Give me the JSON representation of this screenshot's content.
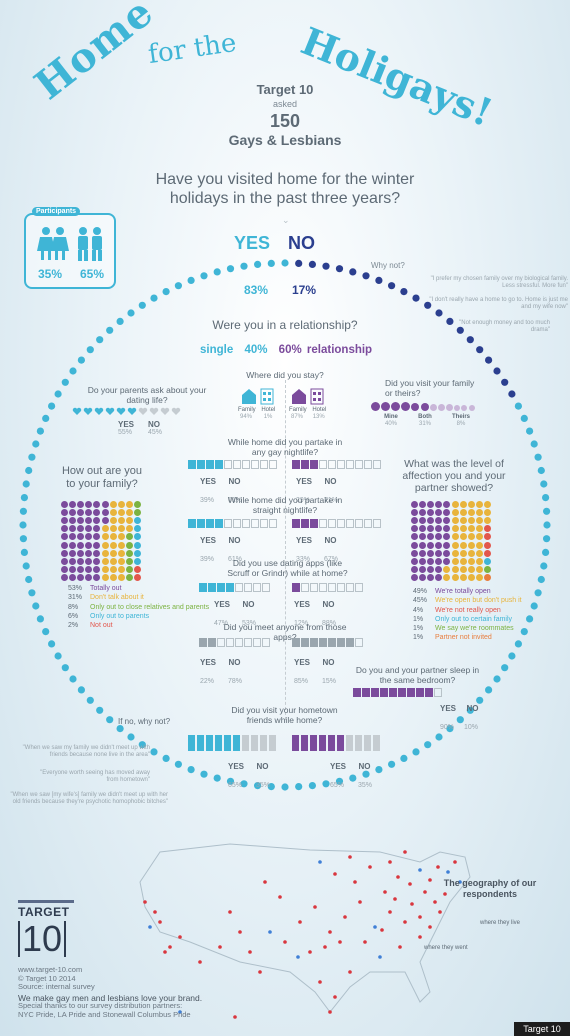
{
  "title": {
    "home": "Home",
    "for_the": "for the",
    "holigays": "Holigays!"
  },
  "intro": {
    "brand": "Target 10",
    "asked": "asked",
    "count": "150",
    "group": "Gays & Lesbians"
  },
  "main_question": "Have you visited home for the winter holidays in the past three years?",
  "participants": {
    "label": "Participants",
    "female_pct": "35%",
    "male_pct": "65%"
  },
  "visited": {
    "yes": "YES",
    "no": "NO",
    "yes_pct": "83%",
    "no_pct": "17%"
  },
  "why_not": {
    "label": "Why not?",
    "answers": [
      "\"I prefer my chosen family over my biological family. Less stressful. More fun\"",
      "\"I don't really have a home to go to. Home is just me and my wife now\"",
      "\"Not enough money and too much drama\""
    ]
  },
  "relationship": {
    "question": "Were you in a relationship?",
    "single_label": "single",
    "single_pct": "40%",
    "rel_pct": "60%",
    "rel_label": "relationship"
  },
  "parents_ask": {
    "question": "Do your parents ask about your dating life?",
    "yes": "YES",
    "yes_pct": "55%",
    "no": "NO",
    "no_pct": "45%"
  },
  "where_stay": {
    "question": "Where did you stay?",
    "single": [
      {
        "label": "Family",
        "pct": "94%"
      },
      {
        "label": "Hotel",
        "pct": "1%"
      }
    ],
    "rel": [
      {
        "label": "Family",
        "pct": "87%"
      },
      {
        "label": "Hotel",
        "pct": "13%"
      }
    ]
  },
  "visit_family": {
    "question": "Did you visit your family or theirs?",
    "options": [
      {
        "label": "Mine",
        "pct": "40%"
      },
      {
        "label": "Both",
        "pct": "31%"
      },
      {
        "label": "Theirs",
        "pct": "8%"
      }
    ]
  },
  "gay_nightlife": {
    "question": "While home did you partake in any gay nightlife?",
    "single": {
      "yes_pct": "39%",
      "no_pct": "61%"
    },
    "rel": {
      "yes_pct": "29%",
      "no_pct": "71%"
    }
  },
  "how_out": {
    "question": "How out are you to your family?",
    "legend": [
      {
        "pct": "53%",
        "label": "Totally out",
        "color": "#7b4b9c"
      },
      {
        "pct": "31%",
        "label": "Don't talk about it",
        "color": "#e8b43c"
      },
      {
        "pct": "8%",
        "label": "Only out to close relatives and parents",
        "color": "#7cb342"
      },
      {
        "pct": "6%",
        "label": "Only out to parents",
        "color": "#3fb5d6"
      },
      {
        "pct": "2%",
        "label": "Not out",
        "color": "#e2574c"
      }
    ]
  },
  "affection": {
    "question": "What was the level of affection you and your partner showed?",
    "legend": [
      {
        "pct": "49%",
        "label": "We're totally open",
        "color": "#7b4b9c"
      },
      {
        "pct": "45%",
        "label": "We're open but don't push it",
        "color": "#e8b43c"
      },
      {
        "pct": "4%",
        "label": "We're not really open",
        "color": "#e2574c"
      },
      {
        "pct": "1%",
        "label": "Only out to certain family",
        "color": "#3fb5d6"
      },
      {
        "pct": "1%",
        "label": "We say we're roommates",
        "color": "#7cb342"
      },
      {
        "pct": "1%",
        "label": "Partner not invited",
        "color": "#e87d3e"
      }
    ]
  },
  "straight_nightlife": {
    "question": "While home did you partake in straight nightlife?",
    "single": {
      "yes_pct": "39%",
      "no_pct": "61%"
    },
    "rel": {
      "yes_pct": "33%",
      "no_pct": "67%"
    }
  },
  "dating_apps": {
    "question": "Did you use dating apps (like Scruff or Grindr) while at home?",
    "single": {
      "yes_pct": "47%",
      "no_pct": "53%"
    },
    "rel": {
      "yes_pct": "12%",
      "no_pct": "88%"
    }
  },
  "meet_apps": {
    "question": "Did you meet anyone from those apps?",
    "single": {
      "yes_pct": "22%",
      "no_pct": "78%"
    },
    "rel": {
      "yes_pct": "85%",
      "no_pct": "15%"
    }
  },
  "sleep_room": {
    "question": "Do you and your partner sleep in the same bedroom?",
    "yes_pct": "90%",
    "no_pct": "10%"
  },
  "hometown": {
    "question": "Did you visit your hometown friends while home?",
    "single": {
      "yes_pct": "65%",
      "no_pct": "35%"
    },
    "rel": {
      "yes_pct": "65%",
      "no_pct": "35%"
    }
  },
  "if_no": {
    "label": "If no, why not?",
    "quotes": [
      "\"When we saw my family we didn't meet up with friends because none live in the area\"",
      "\"Everyone worth seeing has moved away from hometown\"",
      "\"When we saw [my wife's] family we didn't meet up with her old friends because they're psychotic homophobic bitches\""
    ]
  },
  "map": {
    "title": "The geography of our respondents",
    "where_live": "where they live",
    "where_went": "where they went"
  },
  "footer": {
    "logo_word": "TARGET",
    "logo_num": "10",
    "lines": [
      "www.target-10.com",
      "© Target 10 2014",
      "Source: internal survey"
    ],
    "tagline": "We make gay men and lesbians love your brand.",
    "thanks": [
      "Special thanks to our survey distribution partners:",
      "NYC Pride, LA Pride and Stonewall Columbus Pride"
    ],
    "corner": "Target 10"
  },
  "colors": {
    "blue": "#3fb5d6",
    "navy": "#2b3f8f",
    "purple": "#7b4b9c",
    "gray": "#c5ccd1",
    "text": "#5d6a75"
  }
}
